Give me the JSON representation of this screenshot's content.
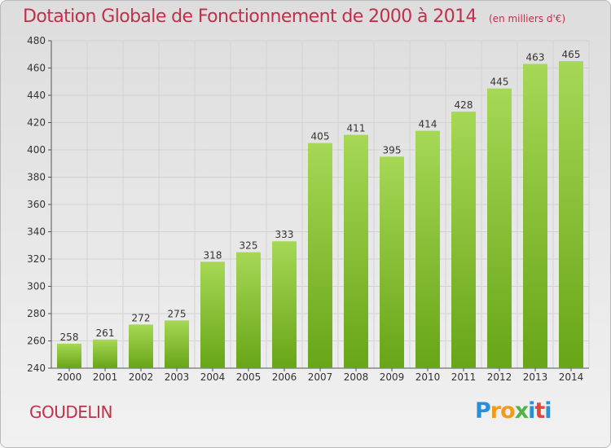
{
  "header": {
    "title": "Dotation Globale de Fonctionnement de 2000 à 2014",
    "subtitle": "(en milliers d'€)"
  },
  "commune": "GOUDELIN",
  "logo": {
    "text": "Proxiti",
    "letters": [
      {
        "char": "P",
        "color": "#2a8fd6"
      },
      {
        "char": "r",
        "color": "#f29a1f"
      },
      {
        "char": "o",
        "color": "#f29a1f"
      },
      {
        "char": "x",
        "color": "#4fb548"
      },
      {
        "char": "i",
        "color": "#2a8fd6"
      },
      {
        "char": "t",
        "color": "#e8433a"
      },
      {
        "char": "i",
        "color": "#2a8fd6"
      }
    ]
  },
  "colors": {
    "bar_light": "#a6d856",
    "bar_dark": "#68a517",
    "text_red": "#c0304a"
  },
  "chart_data": {
    "type": "bar",
    "categories": [
      "2000",
      "2001",
      "2002",
      "2003",
      "2004",
      "2005",
      "2006",
      "2007",
      "2008",
      "2009",
      "2010",
      "2011",
      "2012",
      "2013",
      "2014"
    ],
    "values": [
      258,
      261,
      272,
      275,
      318,
      325,
      333,
      405,
      411,
      395,
      414,
      428,
      445,
      463,
      465
    ],
    "ylim": [
      240,
      480
    ],
    "yticks": [
      240,
      260,
      280,
      300,
      320,
      340,
      360,
      380,
      400,
      420,
      440,
      460,
      480
    ],
    "grid": true,
    "data_labels": true
  }
}
